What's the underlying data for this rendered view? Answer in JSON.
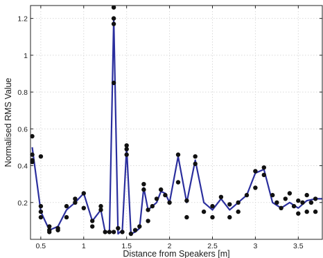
{
  "chart_data": {
    "type": "line",
    "title": "",
    "xlabel": "Distance from Speakers [m]",
    "ylabel": "Normalised RMS Value",
    "xlim": [
      0.38,
      3.78
    ],
    "ylim": [
      0.0,
      1.27
    ],
    "xticks": [
      0.5,
      1,
      1.5,
      2,
      2.5,
      3,
      3.5
    ],
    "xtick_labels": [
      "0.5",
      "1",
      "1.5",
      "2",
      "2.5",
      "3",
      "3.5"
    ],
    "yticks": [
      0.2,
      0.4,
      0.6,
      0.8,
      1.0,
      1.2
    ],
    "ytick_labels": [
      "0.2",
      "0.4",
      "0.6",
      "0.8",
      "1",
      "1.2"
    ],
    "grid": true,
    "line_color": "#2b2f9e",
    "marker_color": "#111111",
    "series": [
      {
        "style": "line",
        "x": [
          0.4,
          0.5,
          0.6,
          0.7,
          0.8,
          0.9,
          1.0,
          1.1,
          1.2,
          1.25,
          1.3,
          1.35,
          1.4,
          1.45,
          1.5,
          1.55,
          1.6,
          1.65,
          1.7,
          1.75,
          1.8,
          1.85,
          1.9,
          1.95,
          2.0,
          2.1,
          2.2,
          2.3,
          2.4,
          2.5,
          2.6,
          2.7,
          2.8,
          2.9,
          3.0,
          3.1,
          3.2,
          3.3,
          3.4,
          3.5,
          3.6,
          3.7,
          3.78
        ],
        "y": [
          0.5,
          0.15,
          0.05,
          0.07,
          0.16,
          0.2,
          0.25,
          0.1,
          0.16,
          0.04,
          0.04,
          1.2,
          0.03,
          0.05,
          0.5,
          0.03,
          0.04,
          0.06,
          0.28,
          0.16,
          0.18,
          0.2,
          0.26,
          0.25,
          0.2,
          0.45,
          0.2,
          0.43,
          0.2,
          0.16,
          0.22,
          0.16,
          0.2,
          0.24,
          0.36,
          0.38,
          0.2,
          0.17,
          0.2,
          0.17,
          0.21,
          0.22,
          0.22
        ]
      },
      {
        "style": "markers",
        "x": [
          0.4,
          0.4,
          0.4,
          0.4,
          0.5,
          0.5,
          0.5,
          0.5,
          0.6,
          0.6,
          0.6,
          0.7,
          0.7,
          0.8,
          0.8,
          0.9,
          0.9,
          1.0,
          1.0,
          1.1,
          1.1,
          1.2,
          1.2,
          1.25,
          1.3,
          1.35,
          1.35,
          1.35,
          1.35,
          1.35,
          1.4,
          1.45,
          1.5,
          1.5,
          1.5,
          1.55,
          1.6,
          1.65,
          1.7,
          1.7,
          1.75,
          1.75,
          1.8,
          1.85,
          1.9,
          1.95,
          2.0,
          2.1,
          2.1,
          2.2,
          2.2,
          2.3,
          2.3,
          2.4,
          2.5,
          2.5,
          2.6,
          2.7,
          2.7,
          2.8,
          2.8,
          2.9,
          3.0,
          3.0,
          3.1,
          3.1,
          3.2,
          3.25,
          3.3,
          3.35,
          3.4,
          3.45,
          3.5,
          3.5,
          3.55,
          3.6,
          3.6,
          3.65,
          3.7,
          3.7
        ],
        "y": [
          0.56,
          0.46,
          0.42,
          0.43,
          0.45,
          0.18,
          0.15,
          0.12,
          0.05,
          0.04,
          0.07,
          0.06,
          0.05,
          0.18,
          0.12,
          0.22,
          0.2,
          0.25,
          0.17,
          0.1,
          0.07,
          0.18,
          0.16,
          0.04,
          0.04,
          1.26,
          1.2,
          1.17,
          0.85,
          0.04,
          0.06,
          0.04,
          0.51,
          0.49,
          0.46,
          0.03,
          0.05,
          0.07,
          0.3,
          0.27,
          0.16,
          0.1,
          0.18,
          0.22,
          0.27,
          0.24,
          0.2,
          0.46,
          0.31,
          0.21,
          0.12,
          0.45,
          0.41,
          0.15,
          0.18,
          0.12,
          0.23,
          0.19,
          0.12,
          0.2,
          0.15,
          0.24,
          0.37,
          0.28,
          0.39,
          0.35,
          0.24,
          0.2,
          0.17,
          0.22,
          0.25,
          0.18,
          0.21,
          0.14,
          0.2,
          0.24,
          0.15,
          0.2,
          0.22,
          0.15
        ]
      }
    ]
  }
}
